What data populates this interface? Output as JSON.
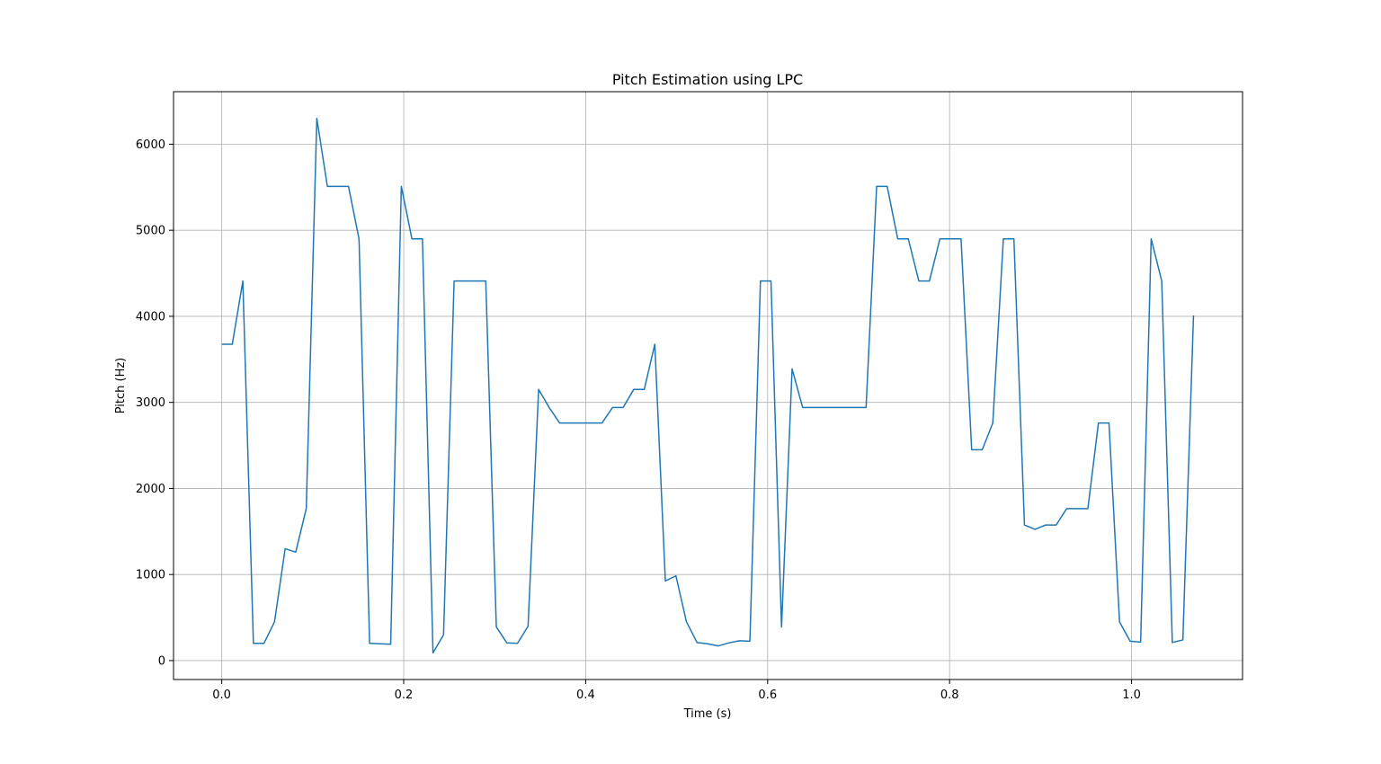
{
  "chart_data": {
    "type": "line",
    "title": "Pitch Estimation using LPC",
    "xlabel": "Time (s)",
    "ylabel": "Pitch (Hz)",
    "xlim": [
      -0.053,
      1.122
    ],
    "ylim": [
      -220,
      6610
    ],
    "x_ticks": [
      0.0,
      0.2,
      0.4,
      0.6,
      0.8,
      1.0
    ],
    "x_tick_labels": [
      "0.0",
      "0.2",
      "0.4",
      "0.6",
      "0.8",
      "1.0"
    ],
    "y_ticks": [
      0,
      1000,
      2000,
      3000,
      4000,
      5000,
      6000
    ],
    "y_tick_labels": [
      "0",
      "1000",
      "2000",
      "3000",
      "4000",
      "5000",
      "6000"
    ],
    "grid": true,
    "line_color": "#1f77b4",
    "series": [
      {
        "x": [
          0.0,
          0.0116,
          0.0232,
          0.0348,
          0.0464,
          0.058,
          0.0697,
          0.0813,
          0.0929,
          0.1045,
          0.1161,
          0.1277,
          0.1393,
          0.1509,
          0.1625,
          0.1741,
          0.1857,
          0.1974,
          0.209,
          0.2206,
          0.2322,
          0.2438,
          0.2554,
          0.267,
          0.2786,
          0.2902,
          0.3018,
          0.3134,
          0.3251,
          0.3367,
          0.3483,
          0.3599,
          0.3715,
          0.3831,
          0.3947,
          0.4063,
          0.4179,
          0.4295,
          0.4412,
          0.4528,
          0.4644,
          0.476,
          0.4876,
          0.4992,
          0.5108,
          0.5224,
          0.534,
          0.5456,
          0.5572,
          0.5689,
          0.5805,
          0.5921,
          0.6037,
          0.6153,
          0.6269,
          0.6385,
          0.6501,
          0.6617,
          0.6733,
          0.6849,
          0.6966,
          0.7082,
          0.7198,
          0.7314,
          0.743,
          0.7546,
          0.7662,
          0.7778,
          0.7894,
          0.801,
          0.8126,
          0.8243,
          0.8359,
          0.8475,
          0.8591,
          0.8707,
          0.8823,
          0.8939,
          0.9055,
          0.9171,
          0.9287,
          0.9404,
          0.952,
          0.9636,
          0.9752,
          0.9868,
          0.9984,
          1.01,
          1.0216,
          1.0332,
          1.0448,
          1.0564,
          1.0681
        ],
        "y": [
          3675,
          3675,
          4410,
          200,
          200,
          450,
          1300,
          1260,
          1765,
          6300,
          5510,
          5510,
          5510,
          4900,
          200,
          195,
          190,
          5510,
          4900,
          4900,
          90,
          300,
          4410,
          4410,
          4410,
          4410,
          390,
          205,
          200,
          400,
          3150,
          2940,
          2760,
          2760,
          2760,
          2760,
          2760,
          2940,
          2940,
          3150,
          3150,
          3675,
          925,
          985,
          450,
          210,
          195,
          170,
          205,
          230,
          225,
          4410,
          4410,
          390,
          3390,
          2940,
          2940,
          2940,
          2940,
          2940,
          2940,
          2940,
          5510,
          5510,
          4900,
          4900,
          4410,
          4410,
          4900,
          4900,
          4900,
          2450,
          2450,
          2760,
          4900,
          4900,
          1575,
          1525,
          1575,
          1575,
          1765,
          1765,
          1765,
          2760,
          2760,
          450,
          225,
          215,
          4900,
          4410,
          210,
          240,
          4010
        ]
      }
    ]
  }
}
